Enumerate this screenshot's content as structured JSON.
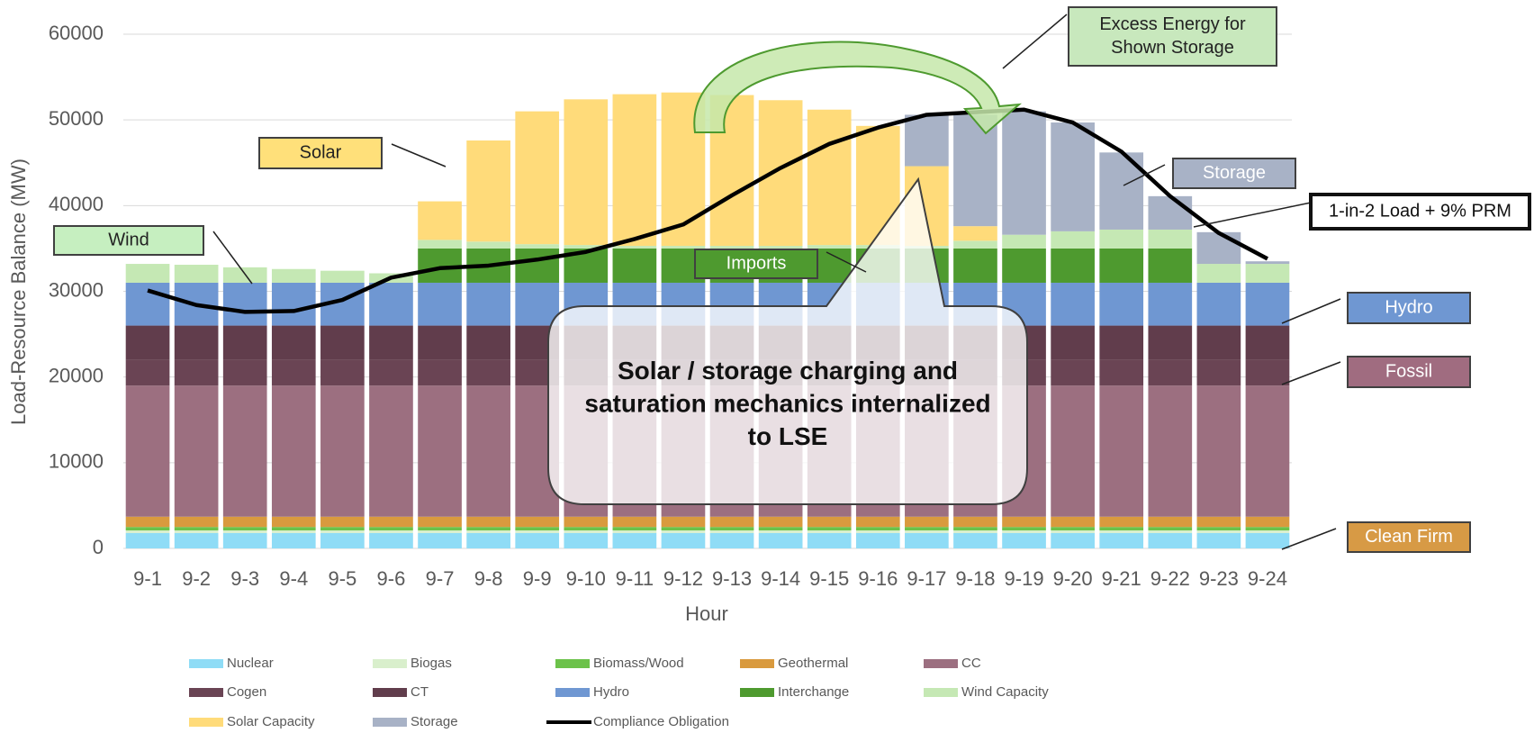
{
  "chart_data": {
    "type": "bar",
    "stacked": true,
    "y_label": "Load-Resource Balance (MW)",
    "x_label": "Hour",
    "categories": [
      "9-1",
      "9-2",
      "9-3",
      "9-4",
      "9-5",
      "9-6",
      "9-7",
      "9-8",
      "9-9",
      "9-10",
      "9-11",
      "9-12",
      "9-13",
      "9-14",
      "9-15",
      "9-16",
      "9-17",
      "9-18",
      "9-19",
      "9-20",
      "9-21",
      "9-22",
      "9-23",
      "9-24"
    ],
    "ylim": [
      0,
      60000
    ],
    "yticks": [
      0,
      10000,
      20000,
      30000,
      40000,
      50000,
      60000
    ],
    "grid": true,
    "legend": "bottom",
    "series": [
      {
        "name": "Nuclear",
        "color": "#8fdcf6",
        "values": [
          1800,
          1800,
          1800,
          1800,
          1800,
          1800,
          1800,
          1800,
          1800,
          1800,
          1800,
          1800,
          1800,
          1800,
          1800,
          1800,
          1800,
          1800,
          1800,
          1800,
          1800,
          1800,
          1800,
          1800
        ]
      },
      {
        "name": "Biogas",
        "color": "#d9efcc",
        "values": [
          300,
          300,
          300,
          300,
          300,
          300,
          300,
          300,
          300,
          300,
          300,
          300,
          300,
          300,
          300,
          300,
          300,
          300,
          300,
          300,
          300,
          300,
          300,
          300
        ]
      },
      {
        "name": "Biomass/Wood",
        "color": "#6cc24a",
        "values": [
          400,
          400,
          400,
          400,
          400,
          400,
          400,
          400,
          400,
          400,
          400,
          400,
          400,
          400,
          400,
          400,
          400,
          400,
          400,
          400,
          400,
          400,
          400,
          400
        ]
      },
      {
        "name": "Geothermal",
        "color": "#d99a3e",
        "values": [
          1200,
          1200,
          1200,
          1200,
          1200,
          1200,
          1200,
          1200,
          1200,
          1200,
          1200,
          1200,
          1200,
          1200,
          1200,
          1200,
          1200,
          1200,
          1200,
          1200,
          1200,
          1200,
          1200,
          1200
        ]
      },
      {
        "name": "CC",
        "color": "#9c6f80",
        "values": [
          15300,
          15300,
          15300,
          15300,
          15300,
          15300,
          15300,
          15300,
          15300,
          15300,
          15300,
          15300,
          15300,
          15300,
          15300,
          15300,
          15300,
          15300,
          15300,
          15300,
          15300,
          15300,
          15300,
          15300
        ]
      },
      {
        "name": "Cogen",
        "color": "#6a4454",
        "values": [
          3000,
          3000,
          3000,
          3000,
          3000,
          3000,
          3000,
          3000,
          3000,
          3000,
          3000,
          3000,
          3000,
          3000,
          3000,
          3000,
          3000,
          3000,
          3000,
          3000,
          3000,
          3000,
          3000,
          3000
        ]
      },
      {
        "name": "CT",
        "color": "#613d4c",
        "values": [
          4000,
          4000,
          4000,
          4000,
          4000,
          4000,
          4000,
          4000,
          4000,
          4000,
          4000,
          4000,
          4000,
          4000,
          4000,
          4000,
          4000,
          4000,
          4000,
          4000,
          4000,
          4000,
          4000,
          4000
        ]
      },
      {
        "name": "Hydro",
        "color": "#6f97d2",
        "values": [
          5000,
          5000,
          5000,
          5000,
          5000,
          5000,
          5000,
          5000,
          5000,
          5000,
          5000,
          5000,
          5000,
          5000,
          5000,
          5000,
          5000,
          5000,
          5000,
          5000,
          5000,
          5000,
          5000,
          5000
        ]
      },
      {
        "name": "Interchange",
        "color": "#4e9a2f",
        "values": [
          0,
          0,
          0,
          0,
          0,
          0,
          4000,
          4000,
          4000,
          4000,
          4000,
          4000,
          4000,
          4000,
          4000,
          4000,
          4000,
          4000,
          4000,
          4000,
          4000,
          4000,
          0,
          0
        ]
      },
      {
        "name": "Wind Capacity",
        "color": "#c5e8b4",
        "values": [
          2200,
          2100,
          1800,
          1600,
          1400,
          1100,
          1000,
          800,
          500,
          400,
          300,
          300,
          300,
          300,
          400,
          400,
          300,
          900,
          1600,
          2000,
          2200,
          2200,
          2200,
          2200
        ]
      },
      {
        "name": "Solar Capacity",
        "color": "#ffdb7a",
        "values": [
          0,
          0,
          0,
          0,
          0,
          0,
          4500,
          11800,
          15500,
          17000,
          17700,
          17900,
          17600,
          17000,
          15800,
          13900,
          9300,
          1700,
          0,
          0,
          0,
          0,
          0,
          0
        ]
      },
      {
        "name": "Storage",
        "color": "#a8b2c6",
        "values": [
          0,
          0,
          0,
          0,
          0,
          0,
          0,
          0,
          0,
          0,
          0,
          0,
          0,
          0,
          0,
          0,
          6000,
          13000,
          14400,
          12700,
          9000,
          3900,
          3700,
          300
        ]
      },
      {
        "name": "Compliance Obligation",
        "type": "line",
        "color": "#000000",
        "values": [
          30100,
          28400,
          27600,
          27700,
          29000,
          31600,
          32700,
          33000,
          33700,
          34600,
          36100,
          37800,
          41200,
          44400,
          47200,
          49100,
          50600,
          50900,
          51200,
          49700,
          46300,
          41100,
          36800,
          33800
        ]
      }
    ],
    "annotations": [
      {
        "lines": [
          "Excess Energy for",
          "Shown Storage"
        ]
      },
      {
        "lines": [
          "Solar"
        ]
      },
      {
        "lines": [
          "Wind"
        ]
      },
      {
        "lines": [
          "Imports"
        ]
      },
      {
        "lines": [
          "Storage"
        ]
      },
      {
        "lines": [
          "1-in-2 Load + 9% PRM"
        ]
      },
      {
        "lines": [
          "Hydro"
        ]
      },
      {
        "lines": [
          "Fossil"
        ]
      },
      {
        "lines": [
          "Clean Firm"
        ]
      },
      {
        "lines": [
          "Solar / storage charging and",
          "saturation mechanics internalized",
          "to LSE"
        ]
      }
    ]
  }
}
